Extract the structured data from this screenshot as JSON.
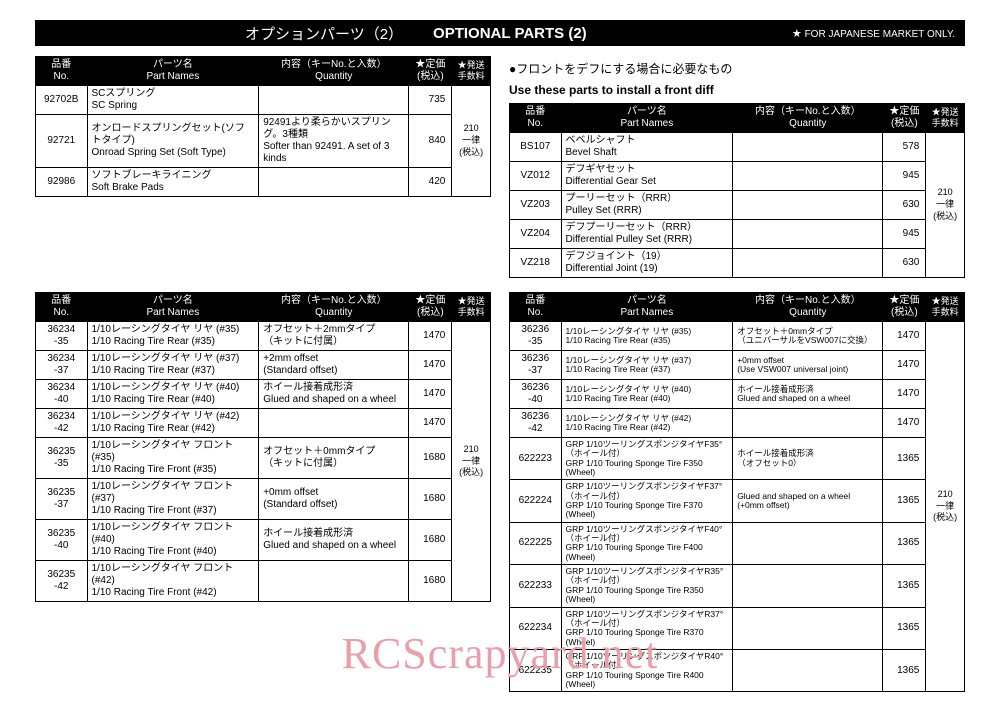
{
  "titleBar": {
    "jp": "オプションパーツ（2）",
    "en": "OPTIONAL PARTS (2)",
    "note": "FOR JAPANESE MARKET ONLY.",
    "star": "★"
  },
  "headers": {
    "no_jp": "品番",
    "no_en": "No.",
    "name_jp": "パーツ名",
    "name_en": "Part Names",
    "qty_jp": "内容（キーNo.と入数）",
    "qty_en": "Quantity",
    "price_jp": "★定価",
    "price_en": "(税込)",
    "ship_jp": "★発送",
    "ship_en": "手数料"
  },
  "shipText": {
    "l1": "210",
    "l2": "一律",
    "l3": "(税込)"
  },
  "subhead": {
    "jp": "●フロントをデフにする場合に必要なもの",
    "en": "Use these parts to install a front diff"
  },
  "table1": [
    {
      "no": "92702B",
      "jp": "SCスプリング",
      "en": "SC Spring",
      "qty_jp": "",
      "qty_en": "",
      "price": "735"
    },
    {
      "no": "92721",
      "jp": "オンロードスプリングセット(ソフトタイプ)",
      "en": "Onroad Spring Set (Soft Type)",
      "qty_jp": "92491より柔らかいスプリング。3種類",
      "qty_en": "Softer than 92491. A set of 3 kinds",
      "price": "840"
    },
    {
      "no": "92986",
      "jp": "ソフトブレーキライニング",
      "en": "Soft Brake Pads",
      "qty_jp": "",
      "qty_en": "",
      "price": "420"
    }
  ],
  "table2": [
    {
      "no": "BS107",
      "jp": "ベベルシャフト",
      "en": "Bevel Shaft",
      "price": "578"
    },
    {
      "no": "VZ012",
      "jp": "デフギヤセット",
      "en": "Differential Gear Set",
      "price": "945"
    },
    {
      "no": "VZ203",
      "jp": "プーリーセット（RRR）",
      "en": "Pulley Set (RRR)",
      "price": "630"
    },
    {
      "no": "VZ204",
      "jp": "デフプーリーセット（RRR）",
      "en": "Differential Pulley Set (RRR)",
      "price": "945"
    },
    {
      "no": "VZ218",
      "jp": "デフジョイント（19）",
      "en": "Differential Joint (19)",
      "price": "630"
    }
  ],
  "table3": [
    {
      "no": "36234\n-35",
      "jp": "1/10レーシングタイヤ リヤ (#35)",
      "en": "1/10 Racing Tire  Rear (#35)",
      "qjp": "オフセット＋2mmタイプ",
      "qen": "（キットに付属）",
      "price": "1470"
    },
    {
      "no": "36234\n-37",
      "jp": "1/10レーシングタイヤ リヤ (#37)",
      "en": "1/10 Racing Tire  Rear (#37)",
      "qjp": "+2mm offset",
      "qen": "(Standard offset)",
      "price": "1470"
    },
    {
      "no": "36234\n-40",
      "jp": "1/10レーシングタイヤ リヤ (#40)",
      "en": "1/10 Racing Tire  Rear (#40)",
      "qjp": "ホイール接着成形済",
      "qen": "Glued and shaped on a wheel",
      "price": "1470"
    },
    {
      "no": "36234\n-42",
      "jp": "1/10レーシングタイヤ リヤ (#42)",
      "en": "1/10 Racing Tire  Rear (#42)",
      "qjp": "",
      "qen": "",
      "price": "1470"
    },
    {
      "no": "36235\n-35",
      "jp": "1/10レーシングタイヤ フロント (#35)",
      "en": "1/10 Racing Tire  Front (#35)",
      "qjp": "オフセット＋0mmタイプ",
      "qen": "（キットに付属）",
      "price": "1680"
    },
    {
      "no": "36235\n-37",
      "jp": "1/10レーシングタイヤ フロント (#37)",
      "en": "1/10 Racing Tire  Front (#37)",
      "qjp": "+0mm offset",
      "qen": "(Standard offset)",
      "price": "1680"
    },
    {
      "no": "36235\n-40",
      "jp": "1/10レーシングタイヤ フロント (#40)",
      "en": "1/10 Racing Tire  Front (#40)",
      "qjp": "ホイール接着成形済",
      "qen": "Glued and shaped on a wheel",
      "price": "1680"
    },
    {
      "no": "36235\n-42",
      "jp": "1/10レーシングタイヤ フロント (#42)",
      "en": "1/10 Racing Tire  Front (#42)",
      "qjp": "",
      "qen": "",
      "price": "1680"
    }
  ],
  "table4": [
    {
      "no": "36236\n-35",
      "jp": "1/10レーシングタイヤ リヤ (#35)",
      "en": "1/10 Racing Tire  Rear (#35)",
      "qjp": "オフセット＋0mmタイプ",
      "qen": "（ユニバーサルをVSW007に交換）",
      "price": "1470"
    },
    {
      "no": "36236\n-37",
      "jp": "1/10レーシングタイヤ リヤ (#37)",
      "en": "1/10 Racing Tire  Rear (#37)",
      "qjp": "+0mm offset",
      "qen": "(Use VSW007 universal joint)",
      "price": "1470"
    },
    {
      "no": "36236\n-40",
      "jp": "1/10レーシングタイヤ リヤ (#40)",
      "en": "1/10 Racing Tire  Rear (#40)",
      "qjp": "ホイール接着成形済",
      "qen": "Glued and shaped on a wheel",
      "price": "1470"
    },
    {
      "no": "36236\n-42",
      "jp": "1/10レーシングタイヤ リヤ (#42)",
      "en": "1/10 Racing Tire  Rear (#42)",
      "qjp": "",
      "qen": "",
      "price": "1470"
    },
    {
      "no": "622223",
      "jp": "GRP 1/10ツーリングスポンジタイヤF35°（ホイール付）",
      "en": "GRP 1/10 Touring Sponge Tire F350 (Wheel)",
      "qjp": "ホイール接着成形済",
      "qen": "（オフセット0）",
      "price": "1365"
    },
    {
      "no": "622224",
      "jp": "GRP 1/10ツーリングスポンジタイヤF37°（ホイール付）",
      "en": "GRP 1/10 Touring Sponge Tire F370 (Wheel)",
      "qjp": "Glued and shaped on a wheel",
      "qen": "(+0mm offset)",
      "price": "1365"
    },
    {
      "no": "622225",
      "jp": "GRP 1/10ツーリングスポンジタイヤF40°（ホイール付）",
      "en": "GRP 1/10 Touring Sponge Tire F400 (Wheel)",
      "qjp": "",
      "qen": "",
      "price": "1365"
    },
    {
      "no": "622233",
      "jp": "GRP 1/10ツーリングスポンジタイヤR35°（ホイール付）",
      "en": "GRP 1/10 Touring Sponge Tire R350 (Wheel)",
      "qjp": "",
      "qen": "",
      "price": "1365"
    },
    {
      "no": "622234",
      "jp": "GRP 1/10ツーリングスポンジタイヤR37°（ホイール付）",
      "en": "GRP 1/10 Touring Sponge Tire R370 (Wheel)",
      "qjp": "",
      "qen": "",
      "price": "1365"
    },
    {
      "no": "622235",
      "jp": "GRP 1/10ツーリングスポンジタイヤR40°（ホイール付）",
      "en": "GRP 1/10 Touring Sponge Tire R400 (Wheel)",
      "qjp": "",
      "qen": "",
      "price": "1365"
    }
  ],
  "watermark": "RCScrapyard.net"
}
